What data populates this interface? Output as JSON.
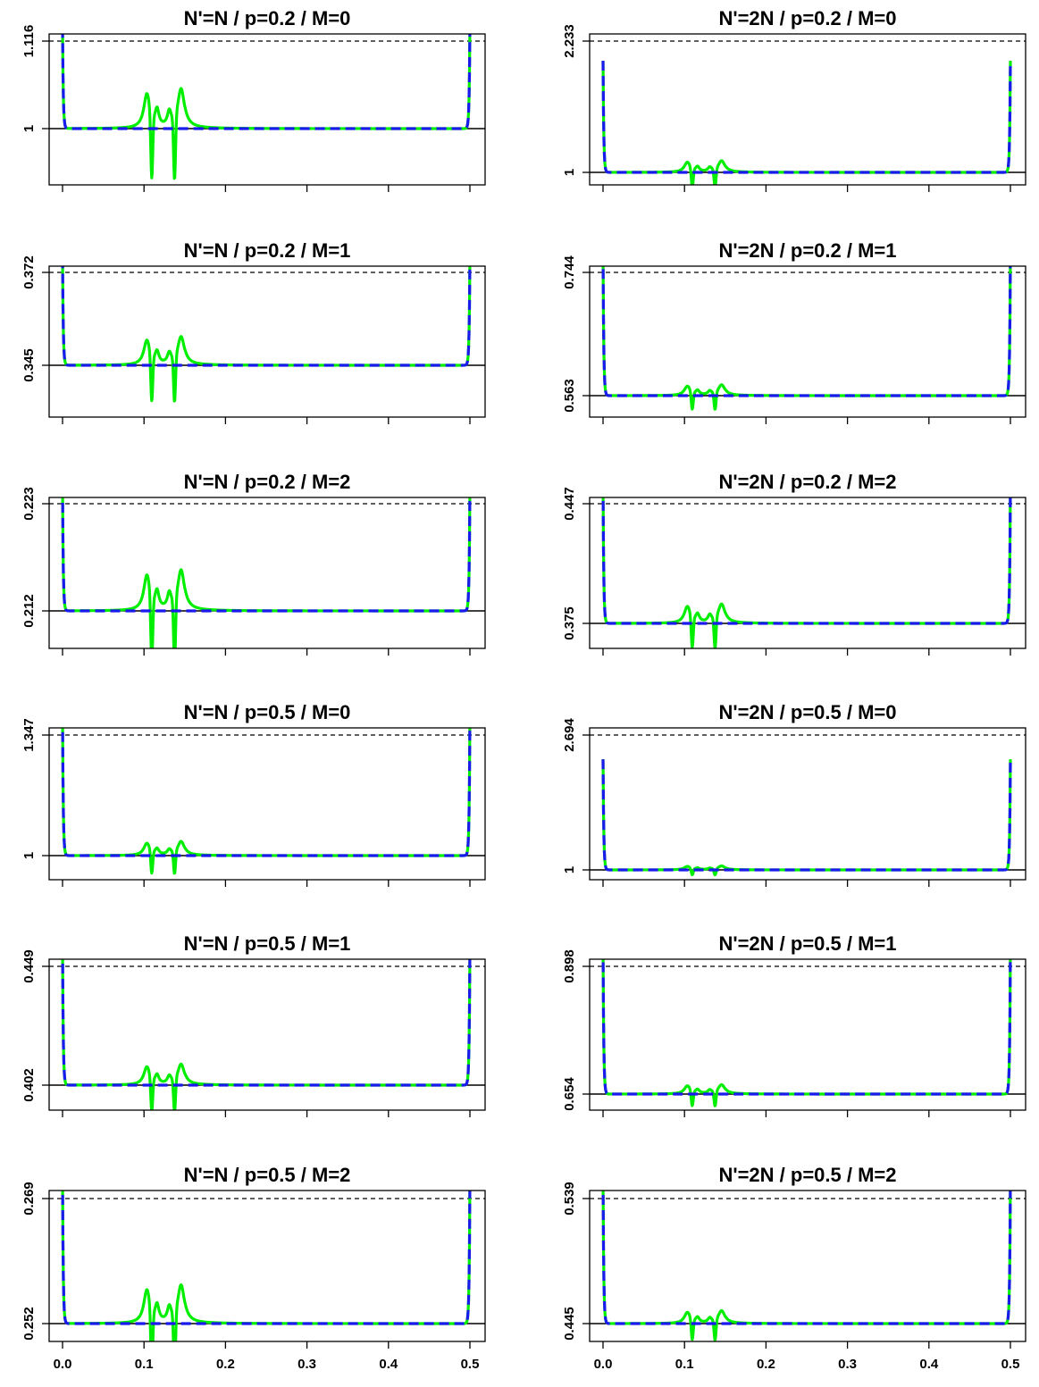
{
  "chart_data": [
    {
      "type": "line",
      "title": "N'=N / p=0.2 / M=0",
      "y_ticks": [
        {
          "value": 1,
          "label": "1"
        },
        {
          "value": 1.116,
          "label": "1.116"
        }
      ],
      "x_ticks": [],
      "series": [
        {
          "color": "#00ee00",
          "style": "solid"
        },
        {
          "color": "#1a1aee",
          "style": "dashed"
        }
      ],
      "reference_lines": [
        {
          "y": 1,
          "style": "solid"
        },
        {
          "y": 1.116,
          "style": "dashed"
        }
      ]
    },
    {
      "type": "line",
      "title": "N'=2N / p=0.2 / M=0",
      "y_ticks": [
        {
          "value": 1,
          "label": "1"
        },
        {
          "value": 2.233,
          "label": "2.233"
        }
      ],
      "x_ticks": [],
      "series": [
        {
          "color": "#00ee00",
          "style": "solid"
        },
        {
          "color": "#1a1aee",
          "style": "dashed"
        }
      ],
      "reference_lines": [
        {
          "y": 1,
          "style": "solid"
        },
        {
          "y": 2.233,
          "style": "dashed"
        }
      ]
    },
    {
      "type": "line",
      "title": "N'=N / p=0.2 / M=1",
      "y_ticks": [
        {
          "value": 0.345,
          "label": "0.345"
        },
        {
          "value": 0.372,
          "label": "0.372"
        }
      ],
      "x_ticks": [],
      "series": [
        {
          "color": "#00ee00",
          "style": "solid"
        },
        {
          "color": "#1a1aee",
          "style": "dashed"
        }
      ],
      "reference_lines": [
        {
          "y": 0.345,
          "style": "solid"
        },
        {
          "y": 0.372,
          "style": "dashed"
        }
      ]
    },
    {
      "type": "line",
      "title": "N'=2N / p=0.2 / M=1",
      "y_ticks": [
        {
          "value": 0.563,
          "label": "0.563"
        },
        {
          "value": 0.744,
          "label": "0.744"
        }
      ],
      "x_ticks": [],
      "series": [
        {
          "color": "#00ee00",
          "style": "solid"
        },
        {
          "color": "#1a1aee",
          "style": "dashed"
        }
      ],
      "reference_lines": [
        {
          "y": 0.563,
          "style": "solid"
        },
        {
          "y": 0.744,
          "style": "dashed"
        }
      ]
    },
    {
      "type": "line",
      "title": "N'=N / p=0.2 / M=2",
      "y_ticks": [
        {
          "value": 0.212,
          "label": "0.212"
        },
        {
          "value": 0.223,
          "label": "0.223"
        }
      ],
      "x_ticks": [],
      "series": [
        {
          "color": "#00ee00",
          "style": "solid"
        },
        {
          "color": "#1a1aee",
          "style": "dashed"
        }
      ],
      "reference_lines": [
        {
          "y": 0.212,
          "style": "solid"
        },
        {
          "y": 0.223,
          "style": "dashed"
        }
      ]
    },
    {
      "type": "line",
      "title": "N'=2N / p=0.2 / M=2",
      "y_ticks": [
        {
          "value": 0.375,
          "label": "0.375"
        },
        {
          "value": 0.447,
          "label": "0.447"
        }
      ],
      "x_ticks": [],
      "series": [
        {
          "color": "#00ee00",
          "style": "solid"
        },
        {
          "color": "#1a1aee",
          "style": "dashed"
        }
      ],
      "reference_lines": [
        {
          "y": 0.375,
          "style": "solid"
        },
        {
          "y": 0.447,
          "style": "dashed"
        }
      ]
    },
    {
      "type": "line",
      "title": "N'=N / p=0.5 / M=0",
      "y_ticks": [
        {
          "value": 1,
          "label": "1"
        },
        {
          "value": 1.347,
          "label": "1.347"
        }
      ],
      "x_ticks": [],
      "series": [
        {
          "color": "#00ee00",
          "style": "solid"
        },
        {
          "color": "#1a1aee",
          "style": "dashed"
        }
      ],
      "reference_lines": [
        {
          "y": 1,
          "style": "solid"
        },
        {
          "y": 1.347,
          "style": "dashed"
        }
      ]
    },
    {
      "type": "line",
      "title": "N'=2N / p=0.5 / M=0",
      "y_ticks": [
        {
          "value": 1,
          "label": "1"
        },
        {
          "value": 2.694,
          "label": "2.694"
        }
      ],
      "x_ticks": [],
      "series": [
        {
          "color": "#00ee00",
          "style": "solid"
        },
        {
          "color": "#1a1aee",
          "style": "dashed"
        }
      ],
      "reference_lines": [
        {
          "y": 1,
          "style": "solid"
        },
        {
          "y": 2.694,
          "style": "dashed"
        }
      ]
    },
    {
      "type": "line",
      "title": "N'=N / p=0.5 / M=1",
      "y_ticks": [
        {
          "value": 0.402,
          "label": "0.402"
        },
        {
          "value": 0.449,
          "label": "0.449"
        }
      ],
      "x_ticks": [],
      "series": [
        {
          "color": "#00ee00",
          "style": "solid"
        },
        {
          "color": "#1a1aee",
          "style": "dashed"
        }
      ],
      "reference_lines": [
        {
          "y": 0.402,
          "style": "solid"
        },
        {
          "y": 0.449,
          "style": "dashed"
        }
      ]
    },
    {
      "type": "line",
      "title": "N'=2N / p=0.5 / M=1",
      "y_ticks": [
        {
          "value": 0.654,
          "label": "0.654"
        },
        {
          "value": 0.898,
          "label": "0.898"
        }
      ],
      "x_ticks": [],
      "series": [
        {
          "color": "#00ee00",
          "style": "solid"
        },
        {
          "color": "#1a1aee",
          "style": "dashed"
        }
      ],
      "reference_lines": [
        {
          "y": 0.654,
          "style": "solid"
        },
        {
          "y": 0.898,
          "style": "dashed"
        }
      ]
    },
    {
      "type": "line",
      "title": "N'=N / p=0.5 / M=2",
      "y_ticks": [
        {
          "value": 0.252,
          "label": "0.252"
        },
        {
          "value": 0.269,
          "label": "0.269"
        }
      ],
      "x_ticks": [
        "0.0",
        "0.1",
        "0.2",
        "0.3",
        "0.4",
        "0.5"
      ],
      "series": [
        {
          "color": "#00ee00",
          "style": "solid"
        },
        {
          "color": "#1a1aee",
          "style": "dashed"
        }
      ],
      "reference_lines": [
        {
          "y": 0.252,
          "style": "solid"
        },
        {
          "y": 0.269,
          "style": "dashed"
        }
      ]
    },
    {
      "type": "line",
      "title": "N'=2N / p=0.5 / M=2",
      "y_ticks": [
        {
          "value": 0.445,
          "label": "0.445"
        },
        {
          "value": 0.539,
          "label": "0.539"
        }
      ],
      "x_ticks": [
        "0.0",
        "0.1",
        "0.2",
        "0.3",
        "0.4",
        "0.5"
      ],
      "series": [
        {
          "color": "#00ee00",
          "style": "solid"
        },
        {
          "color": "#1a1aee",
          "style": "dashed"
        }
      ],
      "reference_lines": [
        {
          "y": 0.445,
          "style": "solid"
        },
        {
          "y": 0.539,
          "style": "dashed"
        }
      ]
    }
  ]
}
